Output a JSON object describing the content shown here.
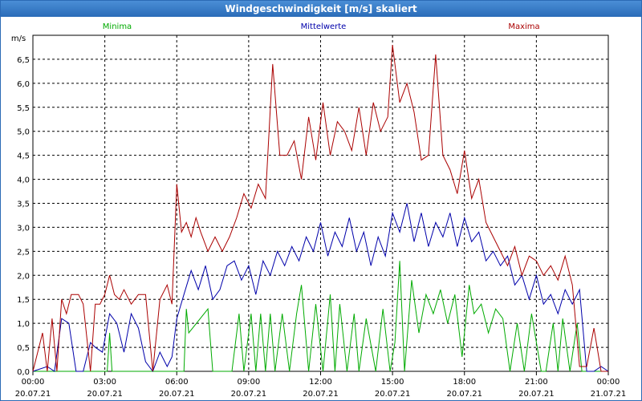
{
  "window": {
    "title": "Windgeschwindigkeit [m/s] skaliert"
  },
  "chart_data": {
    "type": "line",
    "title": "Windgeschwindigkeit [m/s] skaliert",
    "ylabel": "m/s",
    "ylim": [
      0,
      7
    ],
    "xlim": [
      0,
      24
    ],
    "y_ticks": [
      "0,0",
      "0,5",
      "1,0",
      "1,5",
      "2,0",
      "2,5",
      "3,0",
      "3,5",
      "4,0",
      "4,5",
      "5,0",
      "5,5",
      "6,0",
      "6,5"
    ],
    "x_ticks": [
      {
        "time": "00:00",
        "date": "20.07.21"
      },
      {
        "time": "03:00",
        "date": "20.07.21"
      },
      {
        "time": "06:00",
        "date": "20.07.21"
      },
      {
        "time": "09:00",
        "date": "20.07.21"
      },
      {
        "time": "12:00",
        "date": "20.07.21"
      },
      {
        "time": "15:00",
        "date": "20.07.21"
      },
      {
        "time": "18:00",
        "date": "20.07.21"
      },
      {
        "time": "21:00",
        "date": "20.07.21"
      },
      {
        "time": "00:00",
        "date": "21.07.21"
      }
    ],
    "colors": {
      "Minima": "#00aa00",
      "Mittelwerte": "#0000aa",
      "Maxima": "#aa0000"
    },
    "series": [
      {
        "name": "Minima",
        "x": [
          0,
          2.4,
          3.1,
          3.2,
          3.3,
          5.4,
          5.6,
          6.3,
          6.4,
          6.5,
          7.3,
          7.5,
          7.8,
          8.3,
          8.6,
          8.8,
          9.1,
          9.3,
          9.5,
          9.7,
          9.9,
          10.1,
          10.4,
          10.7,
          11.0,
          11.2,
          11.5,
          11.8,
          12.1,
          12.4,
          12.6,
          12.8,
          13.1,
          13.4,
          13.6,
          13.9,
          14.3,
          14.6,
          14.9,
          15.1,
          15.3,
          15.5,
          15.8,
          16.1,
          16.4,
          16.7,
          17.0,
          17.3,
          17.6,
          17.9,
          18.2,
          18.4,
          18.7,
          19.0,
          19.3,
          19.6,
          19.9,
          20.2,
          20.5,
          20.8,
          21.2,
          21.4,
          21.7,
          21.9,
          22.1,
          22.4,
          22.7,
          22.9,
          24
        ],
        "values": [
          0,
          0,
          0,
          0.8,
          0,
          0,
          0,
          0,
          1.3,
          0.8,
          1.3,
          0,
          0,
          0,
          1.2,
          0,
          1.2,
          0,
          1.2,
          0,
          1.2,
          0,
          1.2,
          0,
          1.2,
          1.8,
          0,
          1.4,
          0,
          1.6,
          0,
          1.4,
          0,
          1.2,
          0,
          1.1,
          0,
          1.3,
          0,
          0.6,
          2.3,
          0,
          1.9,
          0.8,
          1.6,
          1.2,
          1.7,
          1.0,
          1.6,
          0.3,
          1.8,
          1.2,
          1.4,
          0.8,
          1.3,
          1.1,
          0,
          1.0,
          0,
          1.2,
          0,
          0,
          1.0,
          0,
          1.1,
          0,
          1.0,
          0,
          0
        ]
      },
      {
        "name": "Mittelwerte",
        "x": [
          0,
          0.6,
          0.9,
          1.2,
          1.5,
          1.8,
          2.1,
          2.4,
          2.6,
          2.9,
          3.2,
          3.5,
          3.8,
          4.1,
          4.4,
          4.7,
          5.0,
          5.3,
          5.6,
          5.8,
          6.0,
          6.3,
          6.6,
          6.9,
          7.2,
          7.5,
          7.8,
          8.1,
          8.4,
          8.7,
          9.0,
          9.3,
          9.6,
          9.9,
          10.2,
          10.5,
          10.8,
          11.1,
          11.4,
          11.7,
          12.0,
          12.3,
          12.6,
          12.9,
          13.2,
          13.5,
          13.8,
          14.1,
          14.4,
          14.7,
          15.0,
          15.3,
          15.6,
          15.9,
          16.2,
          16.5,
          16.8,
          17.1,
          17.4,
          17.7,
          18.0,
          18.3,
          18.6,
          18.9,
          19.2,
          19.5,
          19.8,
          20.1,
          20.4,
          20.7,
          21.0,
          21.3,
          21.6,
          21.9,
          22.2,
          22.5,
          22.8,
          23.1,
          23.4,
          23.7,
          24
        ],
        "values": [
          0,
          0.1,
          0,
          1.1,
          1.0,
          0,
          0,
          0.6,
          0.5,
          0.4,
          1.2,
          1.0,
          0.4,
          1.2,
          0.9,
          0.2,
          0,
          0.4,
          0.1,
          0.3,
          1.1,
          1.6,
          2.1,
          1.7,
          2.2,
          1.5,
          1.7,
          2.2,
          2.3,
          1.9,
          2.2,
          1.6,
          2.3,
          2.0,
          2.5,
          2.2,
          2.6,
          2.3,
          2.8,
          2.5,
          3.1,
          2.4,
          2.9,
          2.6,
          3.2,
          2.5,
          2.9,
          2.2,
          2.8,
          2.4,
          3.3,
          2.9,
          3.5,
          2.7,
          3.3,
          2.6,
          3.1,
          2.8,
          3.3,
          2.6,
          3.2,
          2.7,
          2.9,
          2.3,
          2.5,
          2.2,
          2.4,
          1.8,
          2.0,
          1.5,
          2.0,
          1.4,
          1.6,
          1.2,
          1.7,
          1.4,
          1.7,
          0,
          0,
          0.1,
          0
        ]
      },
      {
        "name": "Maxima",
        "x": [
          0,
          0.4,
          0.6,
          0.8,
          1.0,
          1.2,
          1.4,
          1.6,
          1.9,
          2.1,
          2.4,
          2.6,
          2.8,
          3.0,
          3.2,
          3.4,
          3.6,
          3.8,
          4.1,
          4.4,
          4.7,
          5.0,
          5.3,
          5.6,
          5.8,
          6.0,
          6.2,
          6.4,
          6.6,
          6.8,
          7.0,
          7.3,
          7.6,
          7.9,
          8.2,
          8.5,
          8.8,
          9.1,
          9.4,
          9.7,
          10.0,
          10.3,
          10.6,
          10.9,
          11.2,
          11.5,
          11.8,
          12.1,
          12.4,
          12.7,
          13.0,
          13.3,
          13.6,
          13.9,
          14.2,
          14.5,
          14.8,
          15.0,
          15.3,
          15.6,
          15.9,
          16.2,
          16.5,
          16.8,
          17.1,
          17.4,
          17.7,
          18.0,
          18.3,
          18.6,
          18.9,
          19.2,
          19.5,
          19.8,
          20.1,
          20.4,
          20.7,
          21.0,
          21.3,
          21.6,
          21.9,
          22.2,
          22.5,
          22.8,
          23.1,
          23.4,
          23.7,
          24
        ],
        "values": [
          0,
          0.8,
          0,
          1.1,
          0,
          1.5,
          1.2,
          1.6,
          1.6,
          1.4,
          0,
          1.4,
          1.4,
          1.6,
          2.0,
          1.6,
          1.5,
          1.7,
          1.4,
          1.6,
          1.6,
          0,
          1.5,
          1.8,
          1.4,
          3.9,
          2.9,
          3.1,
          2.8,
          3.2,
          2.9,
          2.5,
          2.8,
          2.5,
          2.8,
          3.2,
          3.7,
          3.4,
          3.9,
          3.6,
          6.4,
          4.5,
          4.5,
          4.8,
          4.0,
          5.3,
          4.4,
          5.6,
          4.5,
          5.2,
          5.0,
          4.6,
          5.5,
          4.5,
          5.6,
          5.0,
          5.3,
          6.8,
          5.6,
          6.0,
          5.4,
          4.4,
          4.5,
          6.6,
          4.5,
          4.2,
          3.7,
          4.6,
          3.6,
          4.0,
          3.1,
          2.8,
          2.5,
          2.2,
          2.6,
          2.0,
          2.4,
          2.3,
          2.0,
          2.2,
          1.9,
          2.4,
          1.8,
          0.1,
          0.1,
          0.9,
          0,
          0
        ]
      }
    ]
  }
}
